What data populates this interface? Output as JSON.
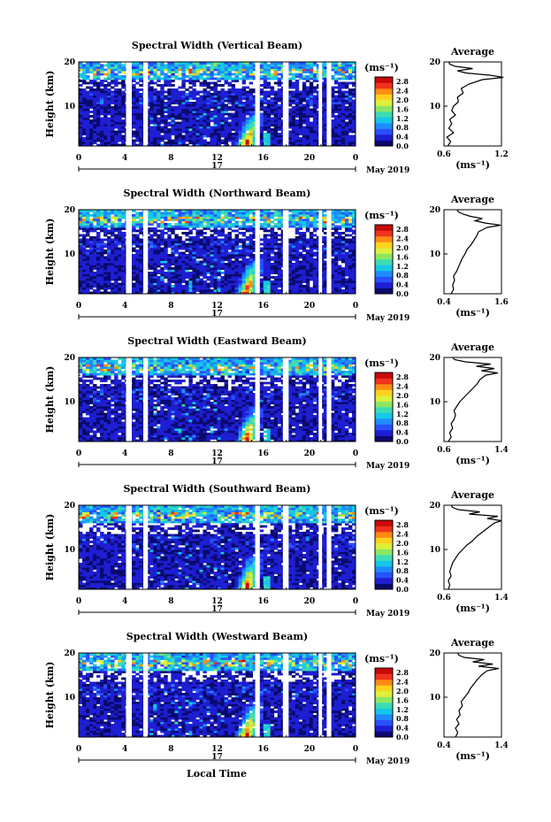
{
  "colors": {
    "colormap": [
      "#0a0a6e",
      "#1e1ed2",
      "#2850ff",
      "#1e8cff",
      "#14c8e6",
      "#3cdcb4",
      "#8ce664",
      "#dcf03c",
      "#ffd21e",
      "#ff8c14",
      "#f0321e",
      "#c80a0a"
    ],
    "gap": "#ffffff",
    "axis": "#000000",
    "profile_line": "#000000"
  },
  "shared": {
    "x_ticks": [
      "0",
      "4",
      "8",
      "12",
      "16",
      "20",
      "0"
    ],
    "y_ticks": [
      "10",
      "20"
    ],
    "ylabel": "Height (km)",
    "date_label": "17",
    "month_label": "May 2019",
    "colorbar_unit": "(ms⁻¹)",
    "colorbar_ticks": [
      "2.8",
      "2.4",
      "2.0",
      "1.6",
      "1.2",
      "0.8",
      "0.4",
      "0.0"
    ],
    "profile_title": "Average",
    "profile_xlabel": "(ms⁻¹)",
    "profile_y_ticks": [
      "10",
      "20"
    ],
    "xlabel": "Local Time"
  },
  "chart_data": [
    {
      "type": "heatmap",
      "title": "Spectral Width (Vertical Beam)",
      "x_range": [
        0,
        24
      ],
      "y_range": [
        1,
        20
      ],
      "z_range": [
        0.0,
        3.0
      ],
      "data_gaps_hours": [
        [
          4.1,
          4.6
        ],
        [
          5.6,
          6.0
        ],
        [
          15.3,
          15.7
        ],
        [
          17.7,
          18.2
        ],
        [
          20.8,
          21.1
        ],
        [
          21.5,
          21.9
        ]
      ],
      "strong_feature": {
        "time_hours": [
          13.5,
          16.0
        ],
        "height_km": [
          1,
          9
        ],
        "max_value": 2.8
      },
      "profile": {
        "type": "line",
        "xlim": [
          0.6,
          1.2
        ],
        "x_ticks": [
          "0.6",
          "1.2"
        ],
        "height_km": [
          1,
          2,
          3,
          4,
          5,
          6,
          7,
          8,
          9,
          10,
          11,
          12,
          13,
          14,
          15,
          16,
          16.5,
          17,
          17.5,
          18,
          18.5,
          19,
          19.5,
          20
        ],
        "avg": [
          0.64,
          0.67,
          0.63,
          0.7,
          0.65,
          0.68,
          0.66,
          0.72,
          0.68,
          0.7,
          0.75,
          0.74,
          0.8,
          0.78,
          0.86,
          1.0,
          1.22,
          1.08,
          0.83,
          0.74,
          0.9,
          0.72,
          0.66,
          0.65
        ]
      }
    },
    {
      "type": "heatmap",
      "title": "Spectral Width (Northward Beam)",
      "x_range": [
        0,
        24
      ],
      "y_range": [
        1,
        20
      ],
      "z_range": [
        0.0,
        3.0
      ],
      "data_gaps_hours": [
        [
          4.1,
          4.6
        ],
        [
          5.6,
          6.0
        ],
        [
          15.3,
          15.7
        ],
        [
          17.7,
          18.2
        ],
        [
          20.8,
          21.1
        ],
        [
          21.5,
          21.9
        ]
      ],
      "strong_feature": {
        "time_hours": [
          13.5,
          16.0
        ],
        "height_km": [
          1,
          9
        ],
        "max_value": 2.8
      },
      "profile": {
        "type": "line",
        "xlim": [
          0.4,
          1.6
        ],
        "x_ticks": [
          "0.4",
          "1.6"
        ],
        "height_km": [
          1,
          2,
          3,
          4,
          5,
          6,
          7,
          8,
          9,
          10,
          11,
          12,
          13,
          14,
          15,
          16,
          16.5,
          17,
          17.5,
          18,
          18.5,
          19,
          19.5,
          20
        ],
        "avg": [
          0.55,
          0.6,
          0.58,
          0.62,
          0.6,
          0.66,
          0.7,
          0.74,
          0.78,
          0.84,
          0.88,
          0.96,
          1.02,
          1.08,
          1.12,
          1.3,
          1.58,
          1.25,
          1.05,
          1.2,
          0.95,
          0.8,
          0.7,
          0.68
        ]
      }
    },
    {
      "type": "heatmap",
      "title": "Spectral Width (Eastward Beam)",
      "x_range": [
        0,
        24
      ],
      "y_range": [
        1,
        20
      ],
      "z_range": [
        0.0,
        3.0
      ],
      "data_gaps_hours": [
        [
          4.1,
          4.6
        ],
        [
          5.6,
          6.0
        ],
        [
          15.3,
          15.7
        ],
        [
          17.7,
          18.2
        ],
        [
          20.8,
          21.1
        ],
        [
          21.5,
          21.9
        ]
      ],
      "strong_feature": {
        "time_hours": [
          13.5,
          16.0
        ],
        "height_km": [
          1,
          9
        ],
        "max_value": 2.8
      },
      "profile": {
        "type": "line",
        "xlim": [
          0.6,
          1.4
        ],
        "x_ticks": [
          "0.6",
          "1.4"
        ],
        "height_km": [
          1,
          2,
          3,
          4,
          5,
          6,
          7,
          8,
          9,
          10,
          11,
          12,
          13,
          14,
          15,
          16,
          16.5,
          17,
          17.5,
          18,
          18.5,
          19,
          19.5,
          20
        ],
        "avg": [
          0.66,
          0.7,
          0.68,
          0.72,
          0.7,
          0.74,
          0.76,
          0.74,
          0.78,
          0.82,
          0.88,
          0.94,
          1.0,
          1.06,
          1.1,
          1.18,
          1.35,
          1.12,
          1.3,
          1.05,
          1.25,
          0.9,
          0.75,
          0.72
        ]
      }
    },
    {
      "type": "heatmap",
      "title": "Spectral Width (Southward Beam)",
      "x_range": [
        0,
        24
      ],
      "y_range": [
        1,
        20
      ],
      "z_range": [
        0.0,
        3.0
      ],
      "data_gaps_hours": [
        [
          4.1,
          4.6
        ],
        [
          5.6,
          6.0
        ],
        [
          15.3,
          15.7
        ],
        [
          17.7,
          18.2
        ],
        [
          20.8,
          21.1
        ],
        [
          21.5,
          21.9
        ]
      ],
      "strong_feature": {
        "time_hours": [
          13.5,
          16.0
        ],
        "height_km": [
          1,
          9
        ],
        "max_value": 2.8
      },
      "profile": {
        "type": "line",
        "xlim": [
          0.6,
          1.4
        ],
        "x_ticks": [
          "0.6",
          "1.4"
        ],
        "height_km": [
          1,
          2,
          3,
          4,
          5,
          6,
          7,
          8,
          9,
          10,
          11,
          12,
          13,
          14,
          15,
          16,
          16.5,
          17,
          17.5,
          18,
          18.5,
          19,
          19.5,
          20
        ],
        "avg": [
          0.66,
          0.68,
          0.66,
          0.7,
          0.68,
          0.7,
          0.72,
          0.76,
          0.8,
          0.86,
          0.92,
          1.0,
          1.06,
          1.14,
          1.22,
          1.3,
          1.4,
          1.2,
          1.35,
          0.95,
          1.1,
          0.8,
          0.72,
          0.7
        ]
      }
    },
    {
      "type": "heatmap",
      "title": "Spectral Width (Westward Beam)",
      "x_range": [
        0,
        24
      ],
      "y_range": [
        1,
        20
      ],
      "z_range": [
        0.0,
        3.0
      ],
      "data_gaps_hours": [
        [
          4.1,
          4.6
        ],
        [
          5.6,
          6.0
        ],
        [
          15.3,
          15.7
        ],
        [
          17.7,
          18.2
        ],
        [
          20.8,
          21.1
        ],
        [
          21.5,
          21.9
        ]
      ],
      "strong_feature": {
        "time_hours": [
          13.5,
          16.0
        ],
        "height_km": [
          1,
          9
        ],
        "max_value": 2.8
      },
      "profile": {
        "type": "line",
        "xlim": [
          0.4,
          1.4
        ],
        "x_ticks": [
          "0.4",
          "1.4"
        ],
        "height_km": [
          1,
          2,
          3,
          4,
          5,
          6,
          7,
          8,
          9,
          10,
          11,
          12,
          13,
          14,
          15,
          16,
          16.5,
          17,
          17.5,
          18,
          18.5,
          19,
          19.5,
          20
        ],
        "avg": [
          0.6,
          0.64,
          0.6,
          0.66,
          0.62,
          0.68,
          0.66,
          0.72,
          0.7,
          0.76,
          0.82,
          0.86,
          0.92,
          0.98,
          1.05,
          1.15,
          1.35,
          1.0,
          1.25,
          0.9,
          1.1,
          0.75,
          0.66,
          0.64
        ]
      }
    }
  ]
}
